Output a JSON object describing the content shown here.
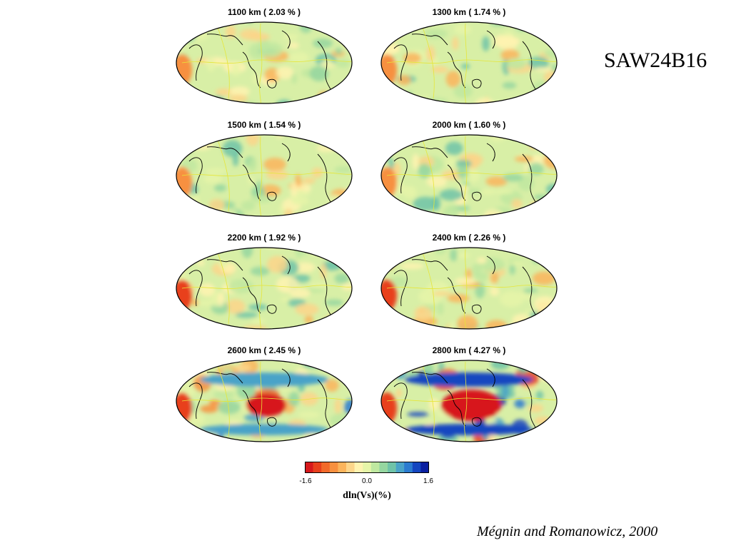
{
  "model_title": "SAW24B16",
  "credit": "Mégnin and Romanowicz, 2000",
  "panels": [
    {
      "depth_label": "1100 km ( 2.03 % )",
      "depth_km": 1100,
      "rms_percent": 2.03
    },
    {
      "depth_label": "1300 km ( 1.74 % )",
      "depth_km": 1300,
      "rms_percent": 1.74
    },
    {
      "depth_label": "1500 km ( 1.54 % )",
      "depth_km": 1500,
      "rms_percent": 1.54
    },
    {
      "depth_label": "2000 km ( 1.60 % )",
      "depth_km": 2000,
      "rms_percent": 1.6
    },
    {
      "depth_label": "2200 km ( 1.92 % )",
      "depth_km": 2200,
      "rms_percent": 1.92
    },
    {
      "depth_label": "2400 km ( 2.26 % )",
      "depth_km": 2400,
      "rms_percent": 2.26
    },
    {
      "depth_label": "2600 km ( 2.45 % )",
      "depth_km": 2600,
      "rms_percent": 2.45
    },
    {
      "depth_label": "2800 km ( 4.27 % )",
      "depth_km": 2800,
      "rms_percent": 4.27
    }
  ],
  "colorbar": {
    "label": "dln(Vs)(%)",
    "min_label": "-1.6",
    "mid_label": "0.0",
    "max_label": "1.6",
    "colors": [
      "#d7191c",
      "#e8401c",
      "#f26a2a",
      "#f7903f",
      "#fbb45c",
      "#fdd58a",
      "#fff3b0",
      "#e6f5a8",
      "#bfe8a0",
      "#95d6a0",
      "#6fc3a8",
      "#4aa3c8",
      "#2b7bd0",
      "#1446c0",
      "#0a1fa0"
    ]
  }
}
